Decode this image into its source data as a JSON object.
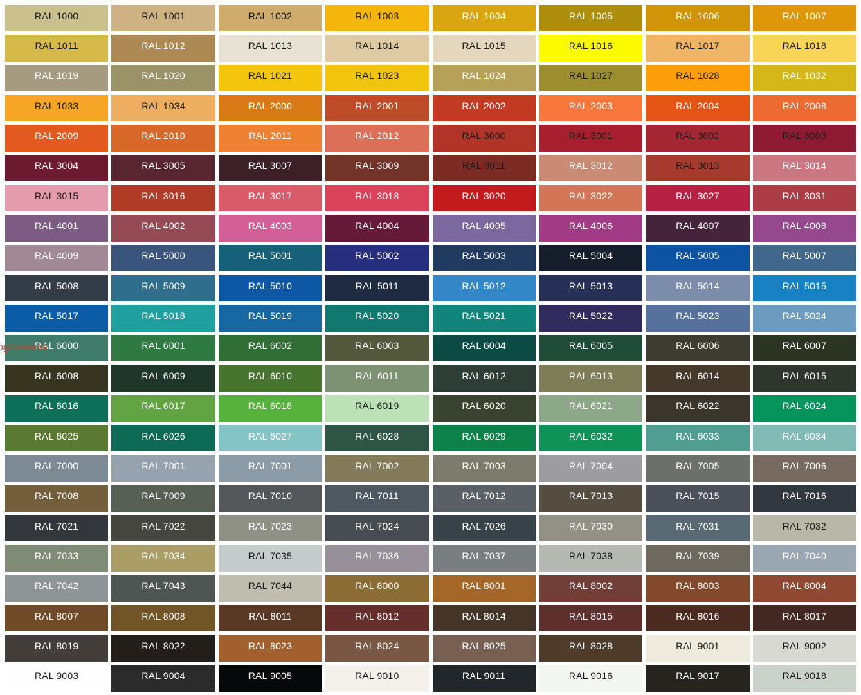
{
  "page": {
    "background": "#FFFFFF",
    "gap_color": "#FFFFFF"
  },
  "watermark": {
    "text": "ogrzewanie",
    "color": "#DC3B2C"
  },
  "grid": {
    "columns": 8,
    "rows": 23,
    "label_prefix": "RAL",
    "duplicate_note": "RAL 7001 appears twice in row 16",
    "cells": [
      {
        "label": "RAL 1000",
        "bg": "#C9C08D",
        "fg": "dark"
      },
      {
        "label": "RAL 1001",
        "bg": "#CFB284",
        "fg": "dark"
      },
      {
        "label": "RAL 1002",
        "bg": "#CFAC6B",
        "fg": "dark"
      },
      {
        "label": "RAL 1003",
        "bg": "#F4B50C",
        "fg": "dark"
      },
      {
        "label": "RAL 1004",
        "bg": "#D9A611",
        "fg": "light"
      },
      {
        "label": "RAL 1005",
        "bg": "#AE8D0B",
        "fg": "light"
      },
      {
        "label": "RAL 1006",
        "bg": "#D09506",
        "fg": "light"
      },
      {
        "label": "RAL 1007",
        "bg": "#DF9609",
        "fg": "light"
      },
      {
        "label": "RAL 1011",
        "bg": "#D5BA49",
        "fg": "dark"
      },
      {
        "label": "RAL 1012",
        "bg": "#AD8A54",
        "fg": "light"
      },
      {
        "label": "RAL 1013",
        "bg": "#E7E2D3",
        "fg": "dark"
      },
      {
        "label": "RAL 1014",
        "bg": "#DECBA4",
        "fg": "dark"
      },
      {
        "label": "RAL 1015",
        "bg": "#E4D7BD",
        "fg": "dark"
      },
      {
        "label": "RAL 1016",
        "bg": "#FBFA00",
        "fg": "dark"
      },
      {
        "label": "RAL 1017",
        "bg": "#F0B467",
        "fg": "dark"
      },
      {
        "label": "RAL 1018",
        "bg": "#F8D556",
        "fg": "dark"
      },
      {
        "label": "RAL 1019",
        "bg": "#A59B81",
        "fg": "light"
      },
      {
        "label": "RAL 1020",
        "bg": "#9C9268",
        "fg": "light"
      },
      {
        "label": "RAL 1021",
        "bg": "#F3C60D",
        "fg": "dark"
      },
      {
        "label": "RAL 1023",
        "bg": "#F1C40D",
        "fg": "dark"
      },
      {
        "label": "RAL 1024",
        "bg": "#B6A159",
        "fg": "light"
      },
      {
        "label": "RAL 1027",
        "bg": "#9C8E2F",
        "fg": "dark"
      },
      {
        "label": "RAL 1028",
        "bg": "#FC9E0A",
        "fg": "dark"
      },
      {
        "label": "RAL 1032",
        "bg": "#D5B71A",
        "fg": "light"
      },
      {
        "label": "RAL 1033",
        "bg": "#F6A527",
        "fg": "dark"
      },
      {
        "label": "RAL 1034",
        "bg": "#EEAE61",
        "fg": "dark"
      },
      {
        "label": "RAL 2000",
        "bg": "#D97B15",
        "fg": "light"
      },
      {
        "label": "RAL 2001",
        "bg": "#BD4B27",
        "fg": "light"
      },
      {
        "label": "RAL 2002",
        "bg": "#C13A21",
        "fg": "light"
      },
      {
        "label": "RAL 2003",
        "bg": "#F7773C",
        "fg": "light"
      },
      {
        "label": "RAL 2004",
        "bg": "#E55414",
        "fg": "light"
      },
      {
        "label": "RAL 2008",
        "bg": "#EF6B34",
        "fg": "light"
      },
      {
        "label": "RAL 2009",
        "bg": "#E25A20",
        "fg": "light"
      },
      {
        "label": "RAL 2010",
        "bg": "#D8682A",
        "fg": "light"
      },
      {
        "label": "RAL 2011",
        "bg": "#EF8232",
        "fg": "light"
      },
      {
        "label": "RAL 2012",
        "bg": "#DB6F57",
        "fg": "light"
      },
      {
        "label": "RAL 3000",
        "bg": "#B03427",
        "fg": "dark"
      },
      {
        "label": "RAL 3001",
        "bg": "#A71F2E",
        "fg": "dark"
      },
      {
        "label": "RAL 3002",
        "bg": "#A62734",
        "fg": "dark"
      },
      {
        "label": "RAL 3003",
        "bg": "#8E1B33",
        "fg": "dark"
      },
      {
        "label": "RAL 3004",
        "bg": "#6B1A2F",
        "fg": "light"
      },
      {
        "label": "RAL 3005",
        "bg": "#582630",
        "fg": "light"
      },
      {
        "label": "RAL 3007",
        "bg": "#3B2127",
        "fg": "light"
      },
      {
        "label": "RAL 3009",
        "bg": "#723329",
        "fg": "light"
      },
      {
        "label": "RAL 3011",
        "bg": "#7C2B24",
        "fg": "dark"
      },
      {
        "label": "RAL 3012",
        "bg": "#C98B74",
        "fg": "light"
      },
      {
        "label": "RAL 3013",
        "bg": "#A63A2C",
        "fg": "dark"
      },
      {
        "label": "RAL 3014",
        "bg": "#CB7782",
        "fg": "light"
      },
      {
        "label": "RAL 3015",
        "bg": "#E39BAD",
        "fg": "dark"
      },
      {
        "label": "RAL 3016",
        "bg": "#B03C28",
        "fg": "light"
      },
      {
        "label": "RAL 3017",
        "bg": "#D95A68",
        "fg": "light"
      },
      {
        "label": "RAL 3018",
        "bg": "#D9445A",
        "fg": "light"
      },
      {
        "label": "RAL 3020",
        "bg": "#C31A1D",
        "fg": "light"
      },
      {
        "label": "RAL 3022",
        "bg": "#D37657",
        "fg": "light"
      },
      {
        "label": "RAL 3027",
        "bg": "#B72144",
        "fg": "light"
      },
      {
        "label": "RAL 3031",
        "bg": "#AC3C45",
        "fg": "light"
      },
      {
        "label": "RAL 4001",
        "bg": "#7D5C83",
        "fg": "light"
      },
      {
        "label": "RAL 4002",
        "bg": "#964A56",
        "fg": "light"
      },
      {
        "label": "RAL 4003",
        "bg": "#D45F96",
        "fg": "light"
      },
      {
        "label": "RAL 4004",
        "bg": "#651B38",
        "fg": "light"
      },
      {
        "label": "RAL 4005",
        "bg": "#7A689E",
        "fg": "light"
      },
      {
        "label": "RAL 4006",
        "bg": "#A23B85",
        "fg": "light"
      },
      {
        "label": "RAL 4007",
        "bg": "#43243A",
        "fg": "light"
      },
      {
        "label": "RAL 4008",
        "bg": "#96488D",
        "fg": "light"
      },
      {
        "label": "RAL 4009",
        "bg": "#A08894",
        "fg": "light"
      },
      {
        "label": "RAL 5000",
        "bg": "#3A557D",
        "fg": "light"
      },
      {
        "label": "RAL 5001",
        "bg": "#176079",
        "fg": "light"
      },
      {
        "label": "RAL 5002",
        "bg": "#252F7E",
        "fg": "light"
      },
      {
        "label": "RAL 5003",
        "bg": "#213A60",
        "fg": "light"
      },
      {
        "label": "RAL 5004",
        "bg": "#161D2B",
        "fg": "light"
      },
      {
        "label": "RAL 5005",
        "bg": "#0E53A2",
        "fg": "light"
      },
      {
        "label": "RAL 5007",
        "bg": "#41678D",
        "fg": "light"
      },
      {
        "label": "RAL 5008",
        "bg": "#333C47",
        "fg": "light"
      },
      {
        "label": "RAL 5009",
        "bg": "#2F6E8D",
        "fg": "light"
      },
      {
        "label": "RAL 5010",
        "bg": "#0D57A5",
        "fg": "light"
      },
      {
        "label": "RAL 5011",
        "bg": "#1F2B41",
        "fg": "light"
      },
      {
        "label": "RAL 5012",
        "bg": "#3387C7",
        "fg": "light"
      },
      {
        "label": "RAL 5013",
        "bg": "#262F55",
        "fg": "light"
      },
      {
        "label": "RAL 5014",
        "bg": "#7C8DAC",
        "fg": "light"
      },
      {
        "label": "RAL 5015",
        "bg": "#1781C4",
        "fg": "light"
      },
      {
        "label": "RAL 5017",
        "bg": "#0A5CA7",
        "fg": "light"
      },
      {
        "label": "RAL 5018",
        "bg": "#1FA09E",
        "fg": "light"
      },
      {
        "label": "RAL 5019",
        "bg": "#1767A2",
        "fg": "light"
      },
      {
        "label": "RAL 5020",
        "bg": "#10796F",
        "fg": "light"
      },
      {
        "label": "RAL 5021",
        "bg": "#11847C",
        "fg": "light"
      },
      {
        "label": "RAL 5022",
        "bg": "#322C5E",
        "fg": "light"
      },
      {
        "label": "RAL 5023",
        "bg": "#57719D",
        "fg": "light"
      },
      {
        "label": "RAL 5024",
        "bg": "#6D9BC0",
        "fg": "light"
      },
      {
        "label": "RAL 6000",
        "bg": "#3F7B68",
        "fg": "light"
      },
      {
        "label": "RAL 6001",
        "bg": "#2F7943",
        "fg": "light"
      },
      {
        "label": "RAL 6002",
        "bg": "#316E36",
        "fg": "light"
      },
      {
        "label": "RAL 6003",
        "bg": "#53573C",
        "fg": "light"
      },
      {
        "label": "RAL 6004",
        "bg": "#0C4B44",
        "fg": "light"
      },
      {
        "label": "RAL 6005",
        "bg": "#1F4C38",
        "fg": "light"
      },
      {
        "label": "RAL 6006",
        "bg": "#3C3D30",
        "fg": "light"
      },
      {
        "label": "RAL 6007",
        "bg": "#2C3424",
        "fg": "light"
      },
      {
        "label": "RAL 6008",
        "bg": "#37341F",
        "fg": "light"
      },
      {
        "label": "RAL 6009",
        "bg": "#1F372A",
        "fg": "light"
      },
      {
        "label": "RAL 6010",
        "bg": "#47742F",
        "fg": "light"
      },
      {
        "label": "RAL 6011",
        "bg": "#7D9273",
        "fg": "light"
      },
      {
        "label": "RAL 6012",
        "bg": "#2F3D37",
        "fg": "light"
      },
      {
        "label": "RAL 6013",
        "bg": "#7F7C58",
        "fg": "light"
      },
      {
        "label": "RAL 6014",
        "bg": "#45392C",
        "fg": "light"
      },
      {
        "label": "RAL 6015",
        "bg": "#2F362E",
        "fg": "light"
      },
      {
        "label": "RAL 6016",
        "bg": "#0F7059",
        "fg": "light"
      },
      {
        "label": "RAL 6017",
        "bg": "#62A344",
        "fg": "light"
      },
      {
        "label": "RAL 6018",
        "bg": "#57B23D",
        "fg": "light"
      },
      {
        "label": "RAL 6019",
        "bg": "#BDE1B7",
        "fg": "dark"
      },
      {
        "label": "RAL 6020",
        "bg": "#39432F",
        "fg": "light"
      },
      {
        "label": "RAL 6021",
        "bg": "#8CA888",
        "fg": "light"
      },
      {
        "label": "RAL 6022",
        "bg": "#3A362B",
        "fg": "light"
      },
      {
        "label": "RAL 6024",
        "bg": "#07935C",
        "fg": "light"
      },
      {
        "label": "RAL 6025",
        "bg": "#5A7A34",
        "fg": "light"
      },
      {
        "label": "RAL 6026",
        "bg": "#0C6A55",
        "fg": "light"
      },
      {
        "label": "RAL 6027",
        "bg": "#85C4C4",
        "fg": "light"
      },
      {
        "label": "RAL 6028",
        "bg": "#2F5546",
        "fg": "light"
      },
      {
        "label": "RAL 6029",
        "bg": "#0C8149",
        "fg": "light"
      },
      {
        "label": "RAL 6032",
        "bg": "#0E9257",
        "fg": "light"
      },
      {
        "label": "RAL 6033",
        "bg": "#4F9E91",
        "fg": "light"
      },
      {
        "label": "RAL 6034",
        "bg": "#82BAB6",
        "fg": "light"
      },
      {
        "label": "RAL 7000",
        "bg": "#7C8A96",
        "fg": "light"
      },
      {
        "label": "RAL 7001",
        "bg": "#96A2AE",
        "fg": "light"
      },
      {
        "label": "RAL 7001",
        "bg": "#8C9BA8",
        "fg": "light"
      },
      {
        "label": "RAL 7002",
        "bg": "#837A59",
        "fg": "light"
      },
      {
        "label": "RAL 7003",
        "bg": "#7D7C6C",
        "fg": "light"
      },
      {
        "label": "RAL 7004",
        "bg": "#9D9DA1",
        "fg": "light"
      },
      {
        "label": "RAL 7005",
        "bg": "#6C6F6C",
        "fg": "light"
      },
      {
        "label": "RAL 7006",
        "bg": "#776B5F",
        "fg": "light"
      },
      {
        "label": "RAL 7008",
        "bg": "#745F3D",
        "fg": "light"
      },
      {
        "label": "RAL 7009",
        "bg": "#585F55",
        "fg": "light"
      },
      {
        "label": "RAL 7010",
        "bg": "#545759",
        "fg": "light"
      },
      {
        "label": "RAL 7011",
        "bg": "#4E5860",
        "fg": "light"
      },
      {
        "label": "RAL 7012",
        "bg": "#5A6065",
        "fg": "light"
      },
      {
        "label": "RAL 7013",
        "bg": "#554D42",
        "fg": "light"
      },
      {
        "label": "RAL 7015",
        "bg": "#4C505A",
        "fg": "light"
      },
      {
        "label": "RAL 7016",
        "bg": "#323840",
        "fg": "light"
      },
      {
        "label": "RAL 7021",
        "bg": "#33373C",
        "fg": "light"
      },
      {
        "label": "RAL 7022",
        "bg": "#464641",
        "fg": "light"
      },
      {
        "label": "RAL 7023",
        "bg": "#8F9187",
        "fg": "light"
      },
      {
        "label": "RAL 7024",
        "bg": "#474B52",
        "fg": "light"
      },
      {
        "label": "RAL 7026",
        "bg": "#374249",
        "fg": "light"
      },
      {
        "label": "RAL 7030",
        "bg": "#939086",
        "fg": "light"
      },
      {
        "label": "RAL 7031",
        "bg": "#596974",
        "fg": "light"
      },
      {
        "label": "RAL 7032",
        "bg": "#B9B7A7",
        "fg": "dark"
      },
      {
        "label": "RAL 7033",
        "bg": "#808B78",
        "fg": "light"
      },
      {
        "label": "RAL 7034",
        "bg": "#AB9D66",
        "fg": "light"
      },
      {
        "label": "RAL 7035",
        "bg": "#C6CCCB",
        "fg": "dark"
      },
      {
        "label": "RAL 7036",
        "bg": "#97909A",
        "fg": "light"
      },
      {
        "label": "RAL 7037",
        "bg": "#7B7E81",
        "fg": "light"
      },
      {
        "label": "RAL 7038",
        "bg": "#B5B8B3",
        "fg": "dark"
      },
      {
        "label": "RAL 7039",
        "bg": "#6D695F",
        "fg": "light"
      },
      {
        "label": "RAL 7040",
        "bg": "#9BA6B3",
        "fg": "light"
      },
      {
        "label": "RAL 7042",
        "bg": "#8E9596",
        "fg": "light"
      },
      {
        "label": "RAL 7043",
        "bg": "#4F5552",
        "fg": "light"
      },
      {
        "label": "RAL 7044",
        "bg": "#BEBDAF",
        "fg": "dark"
      },
      {
        "label": "RAL 8000",
        "bg": "#8B6C35",
        "fg": "light"
      },
      {
        "label": "RAL 8001",
        "bg": "#A56729",
        "fg": "light"
      },
      {
        "label": "RAL 8002",
        "bg": "#713F38",
        "fg": "light"
      },
      {
        "label": "RAL 8003",
        "bg": "#82492C",
        "fg": "light"
      },
      {
        "label": "RAL 8004",
        "bg": "#8F4832",
        "fg": "light"
      },
      {
        "label": "RAL 8007",
        "bg": "#6F4B27",
        "fg": "light"
      },
      {
        "label": "RAL 8008",
        "bg": "#715527",
        "fg": "light"
      },
      {
        "label": "RAL 8011",
        "bg": "#5A3826",
        "fg": "light"
      },
      {
        "label": "RAL 8012",
        "bg": "#662F2B",
        "fg": "light"
      },
      {
        "label": "RAL 8014",
        "bg": "#453528",
        "fg": "light"
      },
      {
        "label": "RAL 8015",
        "bg": "#5F2F2E",
        "fg": "light"
      },
      {
        "label": "RAL 8016",
        "bg": "#4C2B20",
        "fg": "light"
      },
      {
        "label": "RAL 8017",
        "bg": "#442823",
        "fg": "light"
      },
      {
        "label": "RAL 8019",
        "bg": "#433D3B",
        "fg": "light"
      },
      {
        "label": "RAL 8022",
        "bg": "#211E1C",
        "fg": "light"
      },
      {
        "label": "RAL 8023",
        "bg": "#A2602E",
        "fg": "light"
      },
      {
        "label": "RAL 8024",
        "bg": "#7A5743",
        "fg": "light"
      },
      {
        "label": "RAL 8025",
        "bg": "#776052",
        "fg": "light"
      },
      {
        "label": "RAL 8028",
        "bg": "#4E3B29",
        "fg": "light"
      },
      {
        "label": "RAL 9001",
        "bg": "#EFEBDC",
        "fg": "dark"
      },
      {
        "label": "RAL 9002",
        "bg": "#D8D9D3",
        "fg": "dark"
      },
      {
        "label": "RAL 9003",
        "bg": "#FEFEFE",
        "fg": "dark"
      },
      {
        "label": "RAL 9004",
        "bg": "#2B2B2B",
        "fg": "light"
      },
      {
        "label": "RAL 9005",
        "bg": "#070809",
        "fg": "light"
      },
      {
        "label": "RAL 9010",
        "bg": "#F3F1EA",
        "fg": "dark"
      },
      {
        "label": "RAL 9011",
        "bg": "#23272B",
        "fg": "light"
      },
      {
        "label": "RAL 9016",
        "bg": "#F4F6F4",
        "fg": "dark"
      },
      {
        "label": "RAL 9017",
        "bg": "#26241F",
        "fg": "light"
      },
      {
        "label": "RAL 9018",
        "bg": "#CBD2CC",
        "fg": "dark"
      }
    ]
  }
}
